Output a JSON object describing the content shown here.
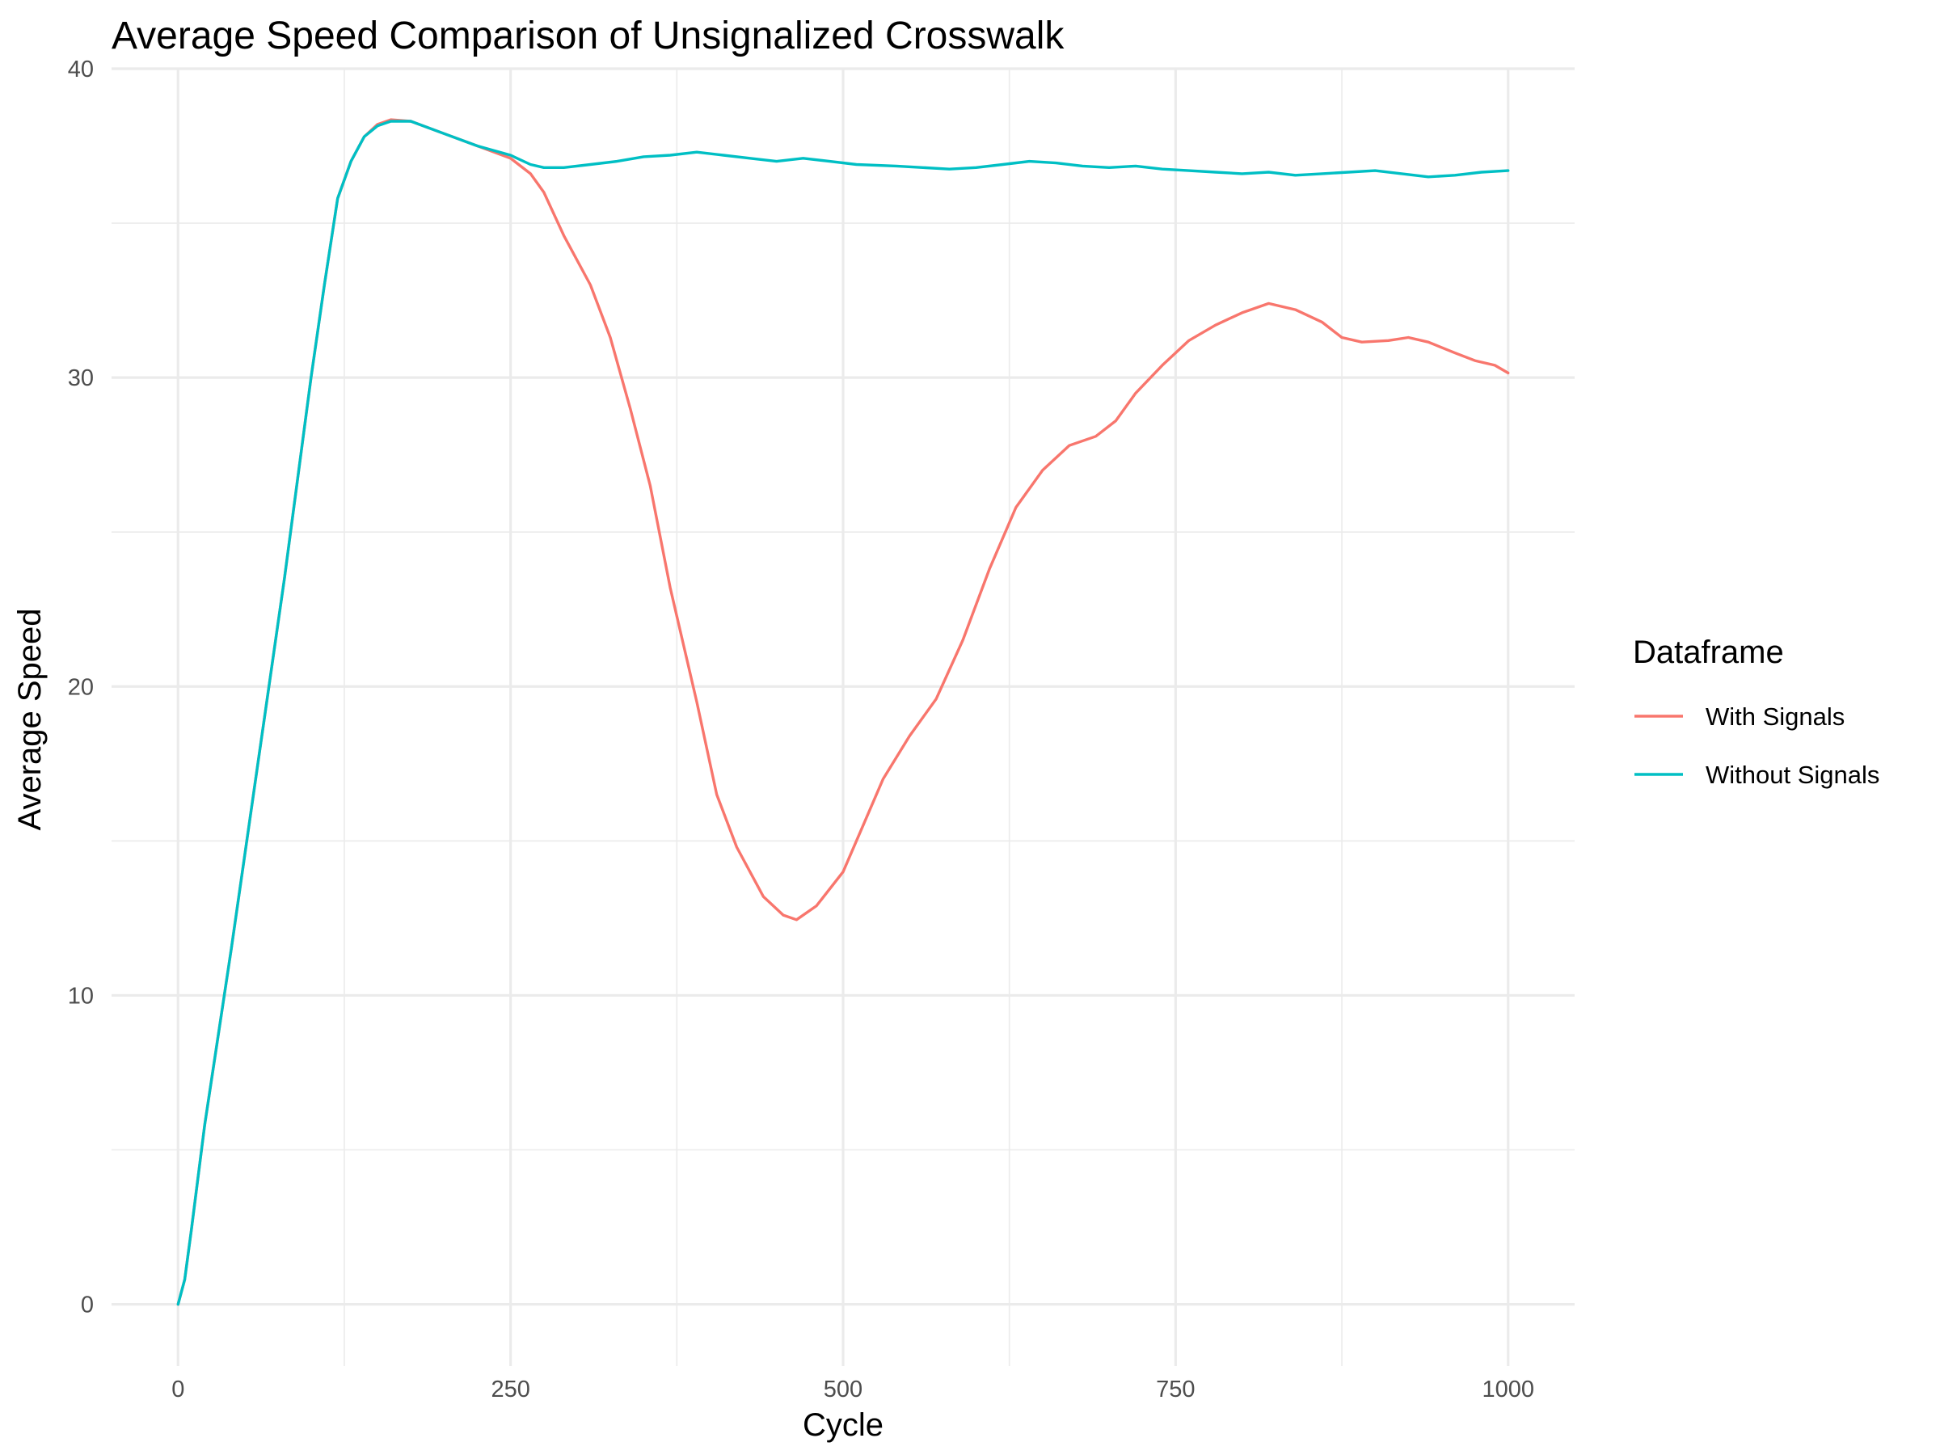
{
  "chart_data": {
    "type": "line",
    "title": "Average Speed Comparison of Unsignalized Crosswalk",
    "xlabel": "Cycle",
    "ylabel": "Average Speed",
    "xlim": [
      -50,
      1050
    ],
    "ylim": [
      -2,
      40
    ],
    "x_ticks": [
      0,
      250,
      500,
      750,
      1000
    ],
    "x_tick_labels": [
      "0",
      "250",
      "500",
      "750",
      "1000"
    ],
    "y_ticks": [
      0,
      10,
      20,
      30,
      40
    ],
    "y_tick_labels": [
      "0",
      "10",
      "20",
      "30",
      "40"
    ],
    "grid": true,
    "legend": {
      "title": "Dataframe",
      "position": "right"
    },
    "series": [
      {
        "name": "With Signals",
        "color": "#F8766D",
        "points": [
          [
            0,
            0
          ],
          [
            5,
            0.8
          ],
          [
            10,
            2.4
          ],
          [
            20,
            5.8
          ],
          [
            40,
            11.5
          ],
          [
            60,
            17.5
          ],
          [
            80,
            23.5
          ],
          [
            100,
            30
          ],
          [
            110,
            33
          ],
          [
            120,
            35.8
          ],
          [
            130,
            37
          ],
          [
            140,
            37.8
          ],
          [
            150,
            38.2
          ],
          [
            160,
            38.35
          ],
          [
            175,
            38.3
          ],
          [
            200,
            37.9
          ],
          [
            225,
            37.5
          ],
          [
            250,
            37.1
          ],
          [
            265,
            36.6
          ],
          [
            275,
            36
          ],
          [
            290,
            34.6
          ],
          [
            310,
            33
          ],
          [
            325,
            31.3
          ],
          [
            340,
            29
          ],
          [
            355,
            26.5
          ],
          [
            370,
            23.2
          ],
          [
            390,
            19.5
          ],
          [
            405,
            16.5
          ],
          [
            420,
            14.8
          ],
          [
            440,
            13.2
          ],
          [
            455,
            12.6
          ],
          [
            465,
            12.45
          ],
          [
            480,
            12.9
          ],
          [
            500,
            14
          ],
          [
            515,
            15.5
          ],
          [
            530,
            17
          ],
          [
            550,
            18.4
          ],
          [
            570,
            19.6
          ],
          [
            590,
            21.5
          ],
          [
            610,
            23.8
          ],
          [
            630,
            25.8
          ],
          [
            650,
            27
          ],
          [
            670,
            27.8
          ],
          [
            690,
            28.1
          ],
          [
            705,
            28.6
          ],
          [
            720,
            29.5
          ],
          [
            740,
            30.4
          ],
          [
            760,
            31.2
          ],
          [
            780,
            31.7
          ],
          [
            800,
            32.1
          ],
          [
            820,
            32.4
          ],
          [
            840,
            32.2
          ],
          [
            860,
            31.8
          ],
          [
            875,
            31.3
          ],
          [
            890,
            31.15
          ],
          [
            910,
            31.2
          ],
          [
            925,
            31.3
          ],
          [
            940,
            31.15
          ],
          [
            960,
            30.8
          ],
          [
            975,
            30.55
          ],
          [
            990,
            30.4
          ],
          [
            1000,
            30.15
          ]
        ]
      },
      {
        "name": "Without Signals",
        "color": "#00BFC4",
        "points": [
          [
            0,
            0
          ],
          [
            5,
            0.8
          ],
          [
            10,
            2.4
          ],
          [
            20,
            5.8
          ],
          [
            40,
            11.5
          ],
          [
            60,
            17.5
          ],
          [
            80,
            23.5
          ],
          [
            100,
            30
          ],
          [
            110,
            33
          ],
          [
            120,
            35.8
          ],
          [
            130,
            37
          ],
          [
            140,
            37.8
          ],
          [
            150,
            38.15
          ],
          [
            160,
            38.3
          ],
          [
            175,
            38.3
          ],
          [
            200,
            37.9
          ],
          [
            225,
            37.5
          ],
          [
            250,
            37.2
          ],
          [
            265,
            36.9
          ],
          [
            275,
            36.8
          ],
          [
            290,
            36.8
          ],
          [
            310,
            36.9
          ],
          [
            330,
            37
          ],
          [
            350,
            37.15
          ],
          [
            370,
            37.2
          ],
          [
            390,
            37.3
          ],
          [
            410,
            37.2
          ],
          [
            430,
            37.1
          ],
          [
            450,
            37
          ],
          [
            470,
            37.1
          ],
          [
            490,
            37
          ],
          [
            510,
            36.9
          ],
          [
            540,
            36.85
          ],
          [
            560,
            36.8
          ],
          [
            580,
            36.75
          ],
          [
            600,
            36.8
          ],
          [
            620,
            36.9
          ],
          [
            640,
            37
          ],
          [
            660,
            36.95
          ],
          [
            680,
            36.85
          ],
          [
            700,
            36.8
          ],
          [
            720,
            36.85
          ],
          [
            740,
            36.75
          ],
          [
            760,
            36.7
          ],
          [
            780,
            36.65
          ],
          [
            800,
            36.6
          ],
          [
            820,
            36.65
          ],
          [
            840,
            36.55
          ],
          [
            860,
            36.6
          ],
          [
            880,
            36.65
          ],
          [
            900,
            36.7
          ],
          [
            920,
            36.6
          ],
          [
            940,
            36.5
          ],
          [
            960,
            36.55
          ],
          [
            980,
            36.65
          ],
          [
            1000,
            36.7
          ]
        ]
      }
    ]
  }
}
